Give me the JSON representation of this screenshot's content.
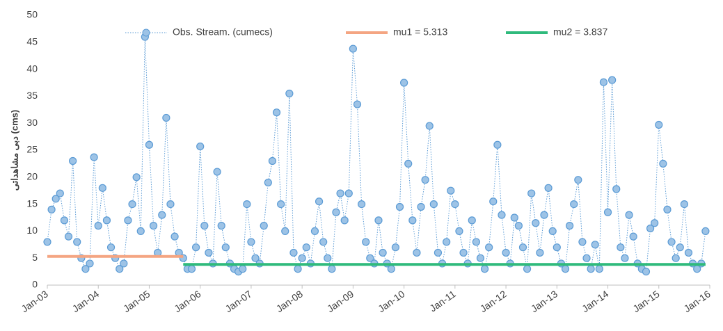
{
  "chart_data": {
    "type": "line",
    "y_label": "دبی مشاهداتی (cms)",
    "xlim": [
      0,
      156
    ],
    "xticks": [
      {
        "value": 0,
        "label": "Jan-03"
      },
      {
        "value": 12,
        "label": "Jan-04"
      },
      {
        "value": 24,
        "label": "Jan-05"
      },
      {
        "value": 36,
        "label": "Jan-06"
      },
      {
        "value": 48,
        "label": "Jan-07"
      },
      {
        "value": 60,
        "label": "Jan-08"
      },
      {
        "value": 72,
        "label": "Jan-09"
      },
      {
        "value": 84,
        "label": "Jan-10"
      },
      {
        "value": 96,
        "label": "Jan-11"
      },
      {
        "value": 108,
        "label": "Jan-12"
      },
      {
        "value": 120,
        "label": "Jan-13"
      },
      {
        "value": 132,
        "label": "Jan-14"
      },
      {
        "value": 144,
        "label": "Jan-15"
      },
      {
        "value": 156,
        "label": "Jan-16"
      }
    ],
    "ylim": [
      0,
      50
    ],
    "yticks": [
      0,
      5,
      10,
      15,
      20,
      25,
      30,
      35,
      40,
      45,
      50
    ],
    "grid": false,
    "legend": "top",
    "series": [
      {
        "name": "Obs. Stream. (cumecs)",
        "color": "#5b9bd5",
        "marker": true,
        "dashed": true,
        "x": [
          0,
          1,
          2,
          3,
          4,
          5,
          6,
          7,
          8,
          9,
          10,
          11,
          12,
          13,
          14,
          15,
          16,
          17,
          18,
          19,
          20,
          21,
          22,
          23,
          24,
          25,
          26,
          27,
          28,
          29,
          30,
          31,
          32,
          33,
          34,
          35,
          36,
          37,
          38,
          39,
          40,
          41,
          42,
          43,
          44,
          45,
          46,
          47,
          48,
          49,
          50,
          51,
          52,
          53,
          54,
          55,
          56,
          57,
          58,
          59,
          60,
          61,
          62,
          63,
          64,
          65,
          66,
          67,
          68,
          69,
          70,
          71,
          72,
          73,
          74,
          75,
          76,
          77,
          78,
          79,
          80,
          81,
          82,
          83,
          84,
          85,
          86,
          87,
          88,
          89,
          90,
          91,
          92,
          93,
          94,
          95,
          96,
          97,
          98,
          99,
          100,
          101,
          102,
          103,
          104,
          105,
          106,
          107,
          108,
          109,
          110,
          111,
          112,
          113,
          114,
          115,
          116,
          117,
          118,
          119,
          120,
          121,
          122,
          123,
          124,
          125,
          126,
          127,
          128,
          129,
          130,
          131,
          132,
          133,
          134,
          135,
          136,
          137,
          138,
          139,
          140,
          141,
          142,
          143,
          144,
          145,
          146,
          147,
          148,
          149,
          150,
          151,
          152,
          153,
          154,
          155
        ],
        "values": [
          8,
          14,
          16,
          17,
          12,
          9,
          23,
          8,
          5,
          3,
          4,
          23.7,
          11,
          18,
          12,
          7,
          5,
          3,
          4,
          12,
          15,
          20,
          10,
          46,
          26,
          11,
          6,
          13,
          31,
          15,
          9,
          6,
          5,
          3,
          3,
          7,
          25.7,
          11,
          6,
          4,
          21,
          11,
          7,
          4,
          3,
          2.5,
          3,
          15,
          8,
          5,
          4,
          11,
          19,
          23,
          32,
          15,
          10,
          35.5,
          6,
          3,
          5,
          7,
          4,
          10,
          15.5,
          8,
          5,
          3,
          13.5,
          17,
          12,
          17,
          43.8,
          33.5,
          15,
          8,
          5,
          4,
          12,
          6,
          4,
          3,
          7,
          14.5,
          37.5,
          22.5,
          12,
          6,
          14.5,
          19.5,
          29.5,
          15,
          6,
          4,
          8,
          17.5,
          15,
          10,
          6,
          4,
          12,
          8,
          5,
          3,
          7,
          15.5,
          26,
          13,
          6,
          4,
          12.5,
          11,
          7,
          3,
          17,
          11.5,
          6,
          13,
          18,
          10,
          7,
          4,
          3,
          11,
          15,
          19.5,
          8,
          5,
          3,
          7.5,
          3,
          37.6,
          13.5,
          38,
          17.8,
          7,
          5,
          13,
          9,
          4,
          3,
          2.5,
          10.5,
          11.5,
          29.7,
          22.5,
          14,
          8,
          5,
          7,
          15,
          6,
          4,
          3,
          4,
          10
        ]
      },
      {
        "name": "mu1 = 5.313",
        "color": "#f4a582",
        "marker": false,
        "dashed": false,
        "x": [
          0,
          32
        ],
        "values": [
          5.313,
          5.313
        ]
      },
      {
        "name": "mu2 = 3.837",
        "color": "#2fba7c",
        "marker": false,
        "dashed": false,
        "x": [
          32,
          155
        ],
        "values": [
          3.837,
          3.837
        ]
      }
    ]
  }
}
